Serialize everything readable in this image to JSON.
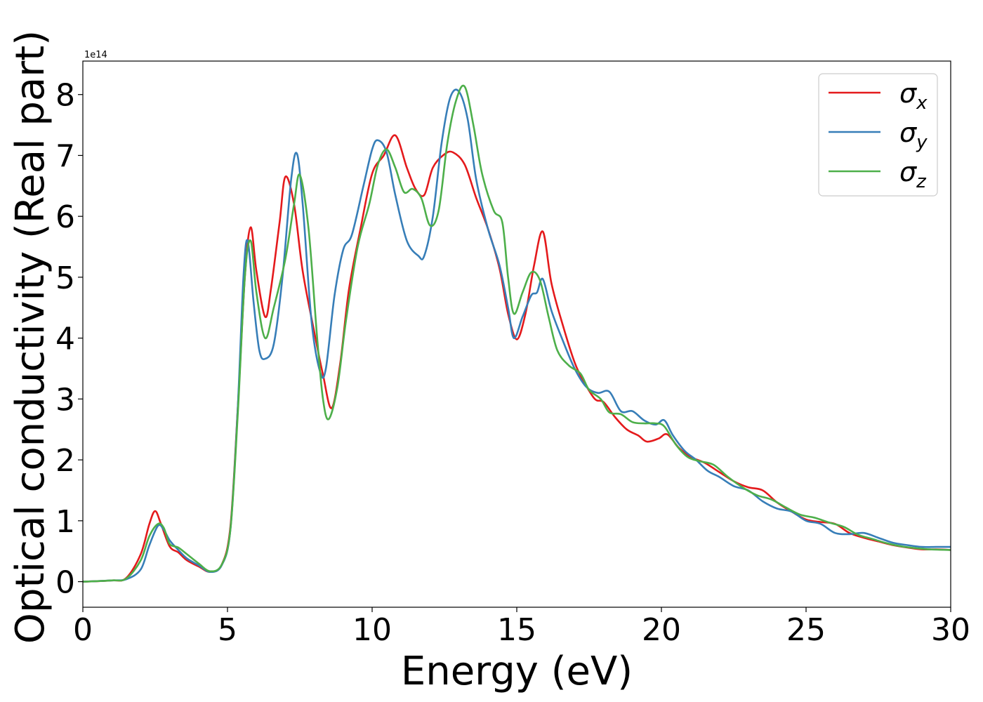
{
  "chart_data": {
    "type": "line",
    "title": "",
    "xlabel": "Energy (eV)",
    "ylabel": "Optical conductivity (Real part)",
    "y_scale_label": "1e14",
    "xlim": [
      0,
      30
    ],
    "ylim": [
      -0.42,
      8.55
    ],
    "x_ticks": [
      0,
      5,
      10,
      15,
      20,
      25,
      30
    ],
    "y_ticks": [
      0,
      1,
      2,
      3,
      4,
      5,
      6,
      7,
      8
    ],
    "grid": false,
    "legend_position": "top-right",
    "series": [
      {
        "name": "σx",
        "legend_main": "σ",
        "legend_sub": "x",
        "color": "#e41a1c",
        "points": [
          [
            0,
            0
          ],
          [
            1,
            0.02
          ],
          [
            1.5,
            0.06
          ],
          [
            2.0,
            0.45
          ],
          [
            2.3,
            0.95
          ],
          [
            2.5,
            1.16
          ],
          [
            2.7,
            0.95
          ],
          [
            3.0,
            0.58
          ],
          [
            3.3,
            0.48
          ],
          [
            3.6,
            0.35
          ],
          [
            4.0,
            0.25
          ],
          [
            4.4,
            0.16
          ],
          [
            4.8,
            0.28
          ],
          [
            5.1,
            0.9
          ],
          [
            5.35,
            2.8
          ],
          [
            5.6,
            5.0
          ],
          [
            5.8,
            5.82
          ],
          [
            6.0,
            5.1
          ],
          [
            6.3,
            4.35
          ],
          [
            6.5,
            4.8
          ],
          [
            6.8,
            5.9
          ],
          [
            7.0,
            6.65
          ],
          [
            7.3,
            6.2
          ],
          [
            7.6,
            5.1
          ],
          [
            8.0,
            4.1
          ],
          [
            8.3,
            3.4
          ],
          [
            8.6,
            2.85
          ],
          [
            8.9,
            3.6
          ],
          [
            9.2,
            4.8
          ],
          [
            9.6,
            5.8
          ],
          [
            10.0,
            6.7
          ],
          [
            10.4,
            7.0
          ],
          [
            10.8,
            7.33
          ],
          [
            11.2,
            6.8
          ],
          [
            11.5,
            6.45
          ],
          [
            11.8,
            6.35
          ],
          [
            12.1,
            6.8
          ],
          [
            12.5,
            7.02
          ],
          [
            12.8,
            7.05
          ],
          [
            13.2,
            6.85
          ],
          [
            13.6,
            6.3
          ],
          [
            14.0,
            5.8
          ],
          [
            14.4,
            5.15
          ],
          [
            14.7,
            4.4
          ],
          [
            15.0,
            3.98
          ],
          [
            15.3,
            4.4
          ],
          [
            15.6,
            5.2
          ],
          [
            15.9,
            5.75
          ],
          [
            16.2,
            4.9
          ],
          [
            16.6,
            4.2
          ],
          [
            17.0,
            3.6
          ],
          [
            17.3,
            3.3
          ],
          [
            17.7,
            3.0
          ],
          [
            18.0,
            2.95
          ],
          [
            18.4,
            2.7
          ],
          [
            18.8,
            2.5
          ],
          [
            19.2,
            2.4
          ],
          [
            19.5,
            2.3
          ],
          [
            19.9,
            2.35
          ],
          [
            20.2,
            2.42
          ],
          [
            20.6,
            2.2
          ],
          [
            21.0,
            2.05
          ],
          [
            21.5,
            1.95
          ],
          [
            22.0,
            1.8
          ],
          [
            22.5,
            1.65
          ],
          [
            23.0,
            1.55
          ],
          [
            23.5,
            1.5
          ],
          [
            24.0,
            1.3
          ],
          [
            24.5,
            1.15
          ],
          [
            25.0,
            1.02
          ],
          [
            25.5,
            0.98
          ],
          [
            26.0,
            0.95
          ],
          [
            26.5,
            0.8
          ],
          [
            27.0,
            0.72
          ],
          [
            27.5,
            0.66
          ],
          [
            28.0,
            0.6
          ],
          [
            28.5,
            0.56
          ],
          [
            29.0,
            0.53
          ],
          [
            29.5,
            0.53
          ],
          [
            30.0,
            0.52
          ]
        ]
      },
      {
        "name": "σy",
        "legend_main": "σ",
        "legend_sub": "y",
        "color": "#377eb8",
        "points": [
          [
            0,
            0
          ],
          [
            1,
            0.02
          ],
          [
            1.5,
            0.04
          ],
          [
            2.0,
            0.2
          ],
          [
            2.3,
            0.6
          ],
          [
            2.6,
            0.92
          ],
          [
            2.8,
            0.85
          ],
          [
            3.0,
            0.68
          ],
          [
            3.3,
            0.52
          ],
          [
            3.6,
            0.38
          ],
          [
            4.0,
            0.27
          ],
          [
            4.4,
            0.16
          ],
          [
            4.8,
            0.27
          ],
          [
            5.1,
            0.85
          ],
          [
            5.35,
            2.8
          ],
          [
            5.55,
            5.0
          ],
          [
            5.7,
            5.6
          ],
          [
            5.9,
            4.6
          ],
          [
            6.1,
            3.8
          ],
          [
            6.3,
            3.66
          ],
          [
            6.6,
            3.9
          ],
          [
            6.9,
            5.0
          ],
          [
            7.2,
            6.6
          ],
          [
            7.4,
            7.03
          ],
          [
            7.6,
            6.2
          ],
          [
            7.9,
            4.3
          ],
          [
            8.2,
            3.45
          ],
          [
            8.4,
            3.5
          ],
          [
            8.7,
            4.7
          ],
          [
            9.0,
            5.45
          ],
          [
            9.3,
            5.7
          ],
          [
            9.7,
            6.5
          ],
          [
            10.0,
            7.1
          ],
          [
            10.2,
            7.25
          ],
          [
            10.5,
            7.05
          ],
          [
            10.8,
            6.35
          ],
          [
            11.2,
            5.6
          ],
          [
            11.6,
            5.35
          ],
          [
            11.8,
            5.35
          ],
          [
            12.1,
            6.0
          ],
          [
            12.4,
            7.2
          ],
          [
            12.7,
            7.95
          ],
          [
            13.0,
            8.05
          ],
          [
            13.3,
            7.6
          ],
          [
            13.6,
            6.6
          ],
          [
            14.0,
            5.8
          ],
          [
            14.4,
            5.2
          ],
          [
            14.7,
            4.5
          ],
          [
            14.9,
            4.0
          ],
          [
            15.2,
            4.35
          ],
          [
            15.5,
            4.7
          ],
          [
            15.7,
            4.75
          ],
          [
            15.9,
            4.97
          ],
          [
            16.2,
            4.45
          ],
          [
            16.6,
            3.95
          ],
          [
            17.0,
            3.5
          ],
          [
            17.4,
            3.2
          ],
          [
            17.8,
            3.1
          ],
          [
            18.2,
            3.12
          ],
          [
            18.6,
            2.8
          ],
          [
            19.0,
            2.8
          ],
          [
            19.4,
            2.65
          ],
          [
            19.8,
            2.58
          ],
          [
            20.1,
            2.65
          ],
          [
            20.4,
            2.4
          ],
          [
            20.8,
            2.15
          ],
          [
            21.2,
            2.0
          ],
          [
            21.6,
            1.82
          ],
          [
            22.0,
            1.72
          ],
          [
            22.5,
            1.57
          ],
          [
            23.0,
            1.5
          ],
          [
            23.5,
            1.32
          ],
          [
            24.0,
            1.2
          ],
          [
            24.5,
            1.15
          ],
          [
            25.0,
            1.0
          ],
          [
            25.5,
            0.95
          ],
          [
            26.0,
            0.8
          ],
          [
            26.5,
            0.78
          ],
          [
            27.0,
            0.8
          ],
          [
            27.5,
            0.72
          ],
          [
            28.0,
            0.64
          ],
          [
            28.5,
            0.6
          ],
          [
            29.0,
            0.57
          ],
          [
            29.5,
            0.57
          ],
          [
            30.0,
            0.57
          ]
        ]
      },
      {
        "name": "σz",
        "legend_main": "σ",
        "legend_sub": "z",
        "color": "#4daf4a",
        "points": [
          [
            0,
            0
          ],
          [
            1,
            0.02
          ],
          [
            1.5,
            0.05
          ],
          [
            2.0,
            0.35
          ],
          [
            2.3,
            0.75
          ],
          [
            2.6,
            0.95
          ],
          [
            2.8,
            0.88
          ],
          [
            3.0,
            0.62
          ],
          [
            3.3,
            0.56
          ],
          [
            3.6,
            0.45
          ],
          [
            4.0,
            0.3
          ],
          [
            4.4,
            0.17
          ],
          [
            4.8,
            0.28
          ],
          [
            5.1,
            0.85
          ],
          [
            5.35,
            2.7
          ],
          [
            5.6,
            5.0
          ],
          [
            5.8,
            5.6
          ],
          [
            6.0,
            4.75
          ],
          [
            6.3,
            4.0
          ],
          [
            6.6,
            4.5
          ],
          [
            7.0,
            5.3
          ],
          [
            7.3,
            6.2
          ],
          [
            7.5,
            6.68
          ],
          [
            7.8,
            5.8
          ],
          [
            8.1,
            4.0
          ],
          [
            8.3,
            3.0
          ],
          [
            8.5,
            2.67
          ],
          [
            8.8,
            3.2
          ],
          [
            9.1,
            4.3
          ],
          [
            9.5,
            5.5
          ],
          [
            9.9,
            6.2
          ],
          [
            10.2,
            6.85
          ],
          [
            10.5,
            7.1
          ],
          [
            10.8,
            6.8
          ],
          [
            11.1,
            6.4
          ],
          [
            11.4,
            6.45
          ],
          [
            11.7,
            6.3
          ],
          [
            12.0,
            5.85
          ],
          [
            12.3,
            6.1
          ],
          [
            12.6,
            7.2
          ],
          [
            12.9,
            7.9
          ],
          [
            13.2,
            8.13
          ],
          [
            13.5,
            7.5
          ],
          [
            13.8,
            6.7
          ],
          [
            14.2,
            6.1
          ],
          [
            14.5,
            5.9
          ],
          [
            14.7,
            5.0
          ],
          [
            14.9,
            4.4
          ],
          [
            15.2,
            4.75
          ],
          [
            15.5,
            5.08
          ],
          [
            15.8,
            4.95
          ],
          [
            16.1,
            4.35
          ],
          [
            16.4,
            3.8
          ],
          [
            16.8,
            3.55
          ],
          [
            17.2,
            3.42
          ],
          [
            17.5,
            3.15
          ],
          [
            17.9,
            3.0
          ],
          [
            18.2,
            2.78
          ],
          [
            18.6,
            2.75
          ],
          [
            19.0,
            2.62
          ],
          [
            19.4,
            2.6
          ],
          [
            19.8,
            2.6
          ],
          [
            20.1,
            2.55
          ],
          [
            20.5,
            2.25
          ],
          [
            20.9,
            2.05
          ],
          [
            21.3,
            1.98
          ],
          [
            21.8,
            1.92
          ],
          [
            22.3,
            1.72
          ],
          [
            22.8,
            1.55
          ],
          [
            23.3,
            1.42
          ],
          [
            23.8,
            1.35
          ],
          [
            24.3,
            1.22
          ],
          [
            24.8,
            1.1
          ],
          [
            25.3,
            1.05
          ],
          [
            25.8,
            0.97
          ],
          [
            26.3,
            0.9
          ],
          [
            26.8,
            0.77
          ],
          [
            27.3,
            0.7
          ],
          [
            27.8,
            0.63
          ],
          [
            28.3,
            0.58
          ],
          [
            28.8,
            0.55
          ],
          [
            29.3,
            0.53
          ],
          [
            30.0,
            0.52
          ]
        ]
      }
    ]
  }
}
